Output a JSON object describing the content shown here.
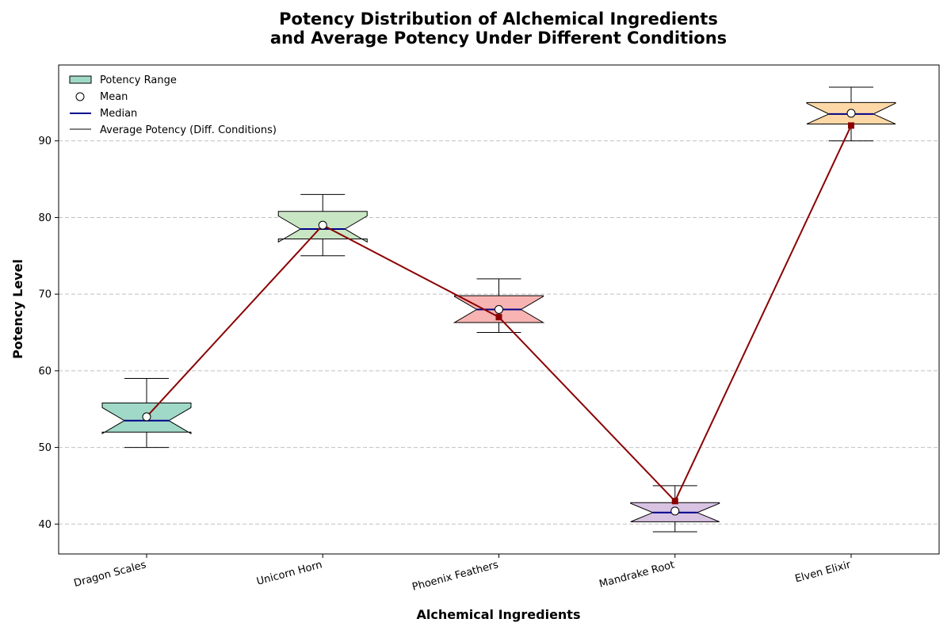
{
  "chart_data": {
    "type": "box",
    "title_lines": [
      "Potency Distribution of Alchemical Ingredients",
      "and Average Potency Under Different Conditions"
    ],
    "xlabel": "Alchemical Ingredients",
    "ylabel": "Potency Level",
    "ylim": [
      36.1,
      99.9
    ],
    "yticks": [
      40,
      50,
      60,
      70,
      80,
      90
    ],
    "grid": "y-dashed",
    "legend_position": "top-left",
    "categories": [
      "Dragon Scales",
      "Unicorn Horn",
      "Phoenix Feathers",
      "Mandrake Root",
      "Elven Elixir"
    ],
    "boxes": [
      {
        "whisker_low": 50,
        "q1": 52,
        "median": 53.5,
        "q3": 55.8,
        "whisker_high": 59,
        "mean": 54,
        "notch_low": 51.8,
        "notch_high": 55.2,
        "color": "#a1d9c8"
      },
      {
        "whisker_low": 75,
        "q1": 77.2,
        "median": 78.5,
        "q3": 80.8,
        "whisker_high": 83,
        "mean": 79,
        "notch_low": 76.8,
        "notch_high": 80.2,
        "color": "#c9e6c4"
      },
      {
        "whisker_low": 65,
        "q1": 66.3,
        "median": 68,
        "q3": 69.8,
        "whisker_high": 72,
        "mean": 68,
        "notch_low": 66.3,
        "notch_high": 69.7,
        "color": "#f7b4b2"
      },
      {
        "whisker_low": 39,
        "q1": 40.3,
        "median": 41.5,
        "q3": 42.8,
        "whisker_high": 45,
        "mean": 41.7,
        "notch_low": 40.3,
        "notch_high": 42.7,
        "color": "#d9c3e3"
      },
      {
        "whisker_low": 90,
        "q1": 92.2,
        "median": 93.5,
        "q3": 95,
        "whisker_high": 97,
        "mean": 93.6,
        "notch_low": 92.2,
        "notch_high": 94.9,
        "color": "#fdd8a6"
      }
    ],
    "average_potency": {
      "name": "Average Potency (Diff. Conditions)",
      "values": [
        54,
        79,
        67,
        43,
        92
      ],
      "color": "#8b0000"
    },
    "median_color": "#00008b",
    "legend": [
      "Potency Range",
      "Mean",
      "Median",
      "Average Potency (Diff. Conditions)"
    ]
  }
}
